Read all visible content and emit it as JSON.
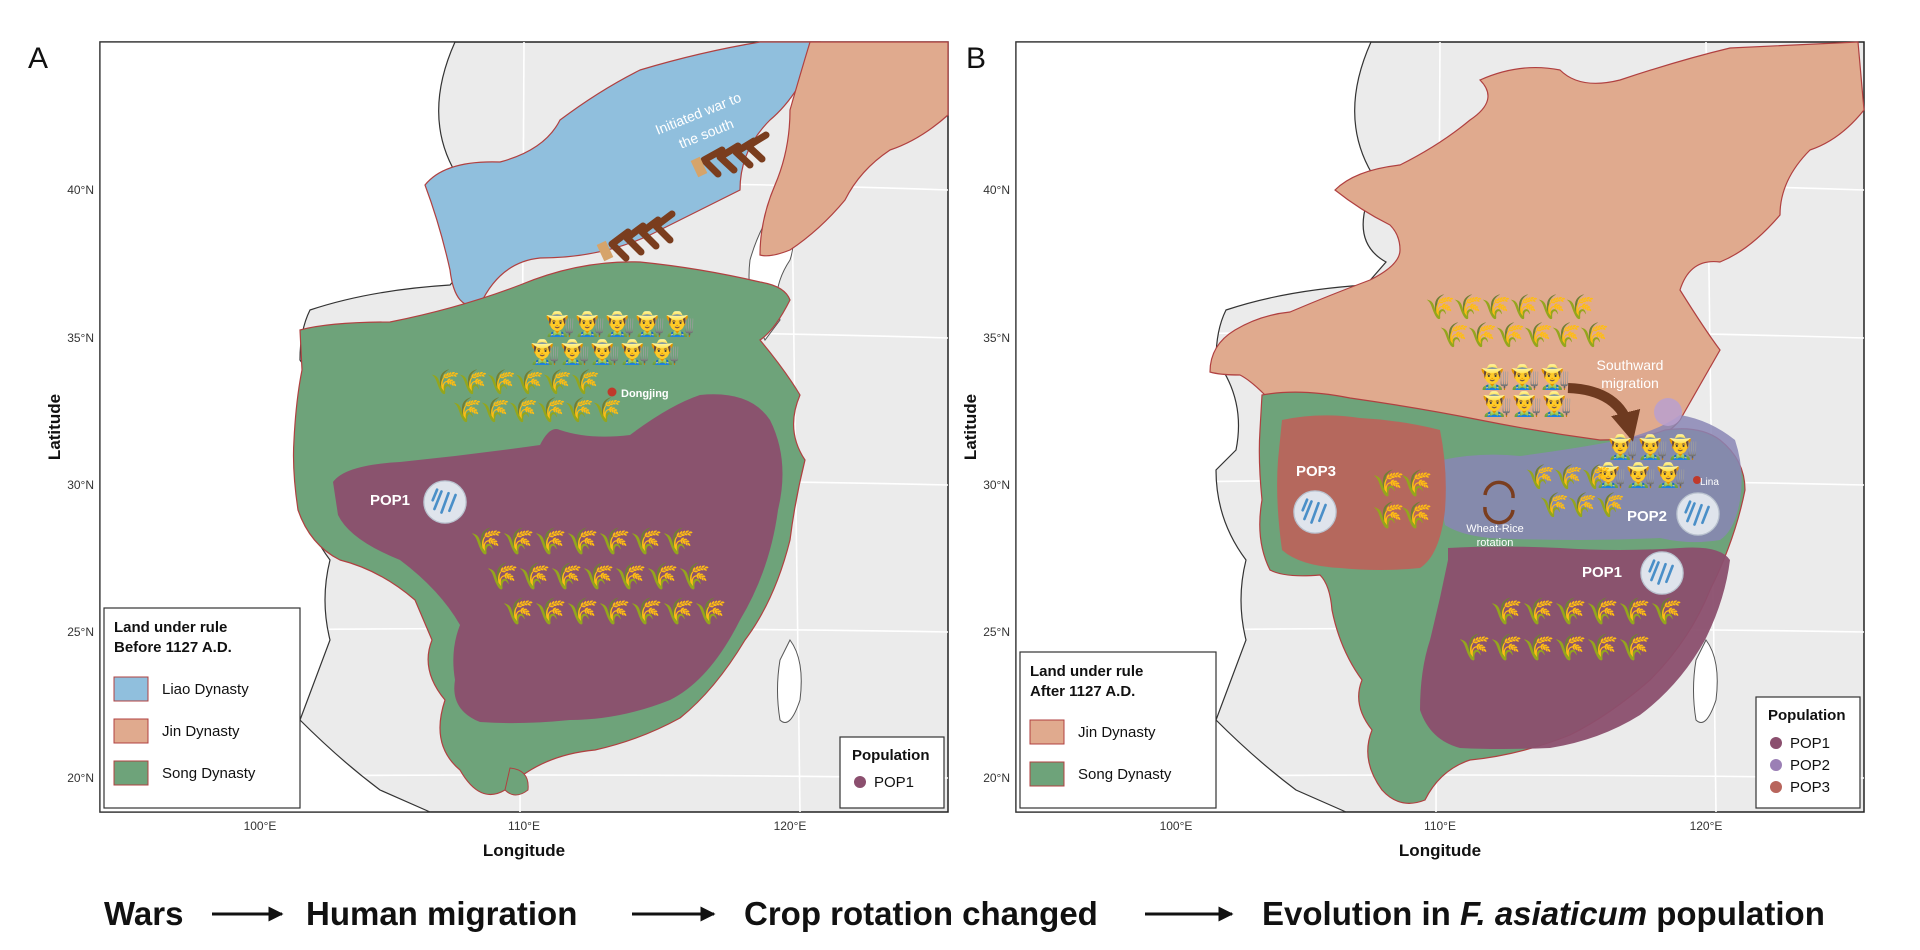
{
  "panels": [
    {
      "letter": "A",
      "legend_title_1": "Land under rule",
      "legend_title_2": "Before 1127 A.D.",
      "legend_items": [
        {
          "label": "Liao Dynasty",
          "color": "#90bfdd"
        },
        {
          "label": "Jin Dynasty",
          "color": "#e0aa8e"
        },
        {
          "label": "Song Dynasty",
          "color": "#6ea37a"
        }
      ],
      "population_title": "Population",
      "population_items": [
        {
          "label": "POP1",
          "color": "#8b4f6e"
        }
      ],
      "annotations": {
        "war_line1": "Initiated war to",
        "war_line2": "the south",
        "city": "Dongjing",
        "pop_label": "POP1"
      }
    },
    {
      "letter": "B",
      "legend_title_1": "Land under rule",
      "legend_title_2": "After 1127 A.D.",
      "legend_items": [
        {
          "label": "Jin Dynasty",
          "color": "#e0aa8e"
        },
        {
          "label": "Song Dynasty",
          "color": "#6ea37a"
        }
      ],
      "population_title": "Population",
      "population_items": [
        {
          "label": "POP1",
          "color": "#8b4f6e"
        },
        {
          "label": "POP2",
          "color": "#9b7fb5"
        },
        {
          "label": "POP3",
          "color": "#b8655c"
        }
      ],
      "annotations": {
        "migration_line1": "Southward",
        "migration_line2": "migration",
        "rotation_line1": "Wheat-Rice",
        "rotation_line2": "rotation",
        "city": "Lina",
        "pop1": "POP1",
        "pop2": "POP2",
        "pop3": "POP3"
      }
    }
  ],
  "axes": {
    "xlabel": "Longitude",
    "ylabel": "Latitude",
    "lat_ticks": [
      "40°N",
      "35°N",
      "30°N",
      "25°N",
      "20°N"
    ],
    "lon_ticks": [
      "100°E",
      "110°E",
      "120°E"
    ]
  },
  "flow": {
    "step1": "Wars",
    "step2": "Human migration",
    "step3": "Crop rotation changed",
    "step4_prefix": "Evolution in ",
    "step4_italic": "F. asiaticum",
    "step4_suffix": " population"
  },
  "icons": {
    "wheat": "wheat-icon",
    "rice": "rice-icon",
    "farmer": "farmer-icon",
    "chevron": "war-chevron-icon",
    "fungus": "fungus-icon",
    "rotation": "rotation-cycle-icon"
  }
}
